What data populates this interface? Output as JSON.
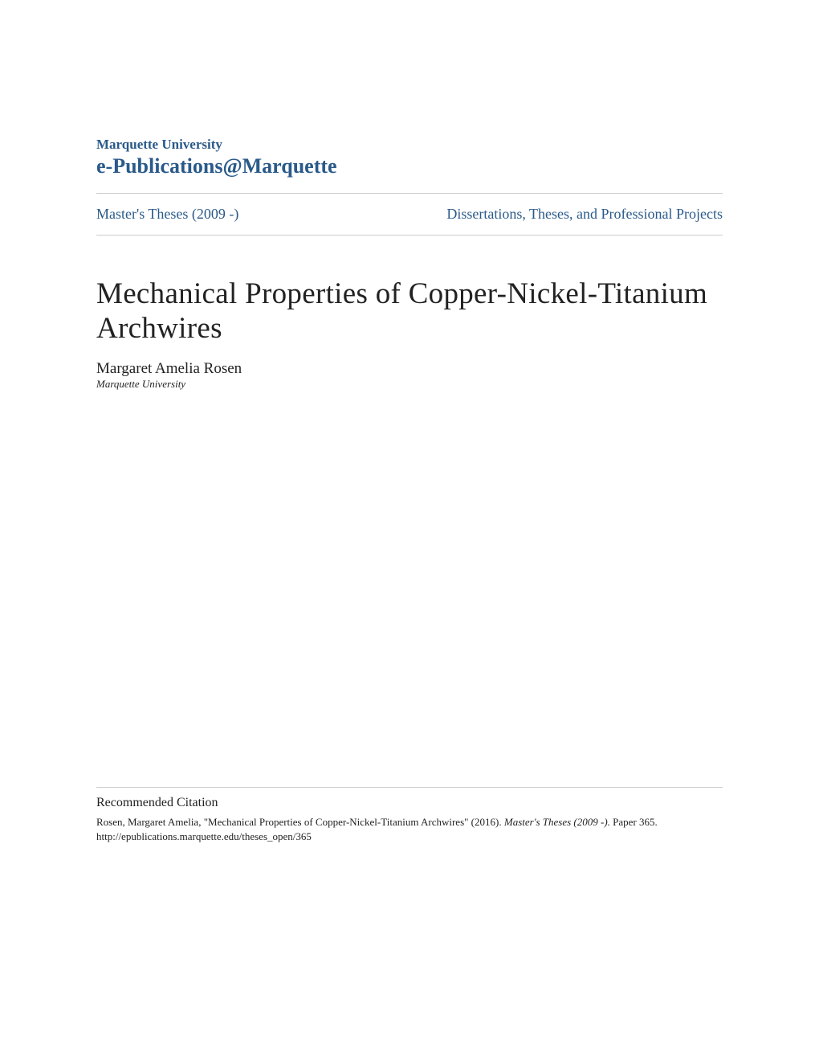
{
  "header": {
    "university": "Marquette University",
    "site": "e-Publications@Marquette"
  },
  "nav": {
    "left": "Master's Theses (2009 -)",
    "right": "Dissertations, Theses, and Professional Projects"
  },
  "document": {
    "title": "Mechanical Properties of Copper-Nickel-Titanium Archwires",
    "author": "Margaret Amelia Rosen",
    "affiliation": "Marquette University"
  },
  "citation": {
    "label": "Recommended Citation",
    "text_part1": "Rosen, Margaret Amelia, \"Mechanical Properties of Copper-Nickel-Titanium Archwires\" (2016). ",
    "text_italic": "Master's Theses (2009 -).",
    "text_part2": " Paper 365.",
    "url": "http://epublications.marquette.edu/theses_open/365"
  },
  "colors": {
    "link_color": "#2a5a8a",
    "text_color": "#222222",
    "divider_color": "#cccccc",
    "background": "#ffffff"
  },
  "typography": {
    "university_fontsize": 17,
    "site_fontsize": 26,
    "nav_fontsize": 18,
    "title_fontsize": 37,
    "author_fontsize": 19,
    "affiliation_fontsize": 13,
    "citation_label_fontsize": 16,
    "citation_text_fontsize": 13
  }
}
